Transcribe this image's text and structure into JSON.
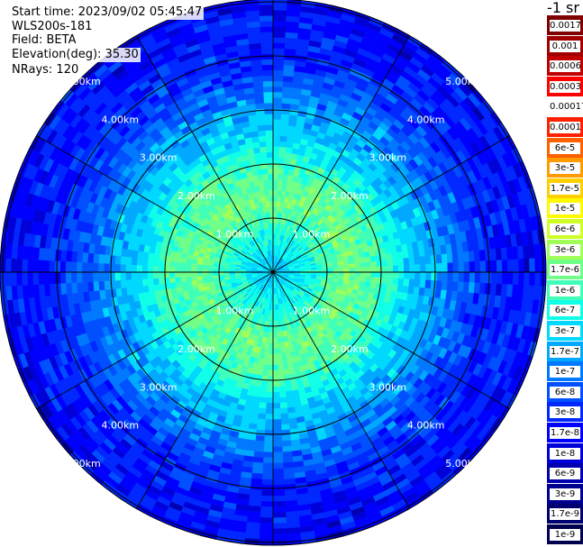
{
  "info": {
    "start_time": "Start time: 2023/09/02 05:45:47",
    "instrument": "WLS200s-181",
    "field": "Field: BETA",
    "elevation": "Elevation(deg): 35.30",
    "nrays": "NRays: 120"
  },
  "chart_data": {
    "type": "heatmap",
    "projection": "polar (PPI scan)",
    "field": "BETA",
    "nrays": 120,
    "elevation_deg": 35.3,
    "range_rings": [
      {
        "range_km": 1,
        "label": "1.00km"
      },
      {
        "range_km": 2,
        "label": "2.00km"
      },
      {
        "range_km": 3,
        "label": "3.00km"
      },
      {
        "range_km": 4,
        "label": "4.00km"
      },
      {
        "range_km": 5,
        "label": "5.00km"
      }
    ],
    "max_range_km": 5.05,
    "spokes_deg": [
      0,
      30,
      60,
      90,
      120,
      150,
      180,
      210,
      240,
      270,
      300,
      330
    ],
    "radial_profile": [
      {
        "range_km": 0.2,
        "value": "3e-7"
      },
      {
        "range_km": 0.7,
        "value": "6e-7"
      },
      {
        "range_km": 1.3,
        "value": "1.7e-6"
      },
      {
        "range_km": 2.0,
        "value": "1e-6"
      },
      {
        "range_km": 2.5,
        "value": "3e-7"
      },
      {
        "range_km": 3.0,
        "value": "1.7e-7"
      },
      {
        "range_km": 3.5,
        "value": "6e-8"
      },
      {
        "range_km": 4.0,
        "value": "3e-8"
      },
      {
        "range_km": 5.0,
        "value": "1.7e-8"
      }
    ],
    "colorbar": {
      "title": "-1 sr",
      "levels": [
        "0.0017",
        "0.001",
        "0.0006",
        "0.0003",
        "0.00017",
        "0.0001",
        "6e-5",
        "3e-5",
        "1.7e-5",
        "1e-5",
        "6e-6",
        "3e-6",
        "1.7e-6",
        "1e-6",
        "6e-7",
        "3e-7",
        "1.7e-7",
        "1e-7",
        "6e-8",
        "3e-8",
        "1.7e-8",
        "1e-8",
        "6e-9",
        "3e-9",
        "1.7e-9",
        "1e-9"
      ],
      "colors": [
        "#800000",
        "#a00000",
        "#c00000",
        "#ff0000",
        "#ffffff",
        "#ff2000",
        "#ff6000",
        "#ff9a00",
        "#ffcf00",
        "#fffa00",
        "#d0ff28",
        "#a0ff58",
        "#70ff88",
        "#40ffb8",
        "#10ffe8",
        "#00d8ff",
        "#00a8ff",
        "#0078ff",
        "#0050ff",
        "#0028ff",
        "#0000ff",
        "#0000d8",
        "#0000b0",
        "#000090",
        "#000070",
        "#000050"
      ]
    }
  }
}
